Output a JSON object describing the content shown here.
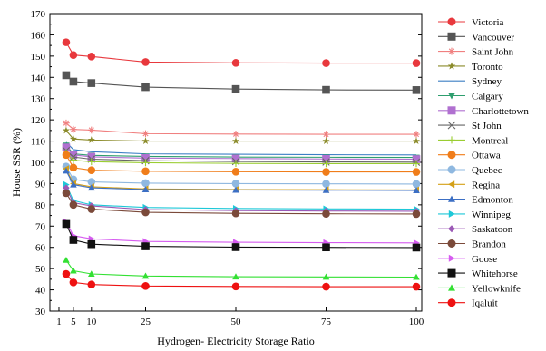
{
  "chart_data": {
    "type": "line",
    "title": "",
    "xlabel": "Hydrogen- Electricity Storage Ratio",
    "ylabel": "House SSR (%)",
    "xlim": [
      0,
      100
    ],
    "ylim": [
      30,
      170
    ],
    "x": [
      3,
      5,
      10,
      25,
      50,
      75,
      100
    ],
    "x_ticks": [
      1,
      5,
      10,
      25,
      50,
      75,
      100
    ],
    "y_ticks": [
      30,
      40,
      50,
      60,
      70,
      80,
      90,
      100,
      110,
      120,
      130,
      140,
      150,
      160,
      170
    ],
    "legend_position": "right",
    "grid": false,
    "series": [
      {
        "name": "Victoria",
        "color": "#e8383d",
        "marker": "circle",
        "values": [
          156.5,
          150.5,
          149.8,
          147.2,
          146.8,
          146.7,
          146.7
        ]
      },
      {
        "name": "Vancouver",
        "color": "#555555",
        "marker": "square",
        "values": [
          141,
          138,
          137.3,
          135.4,
          134.5,
          134.1,
          134
        ]
      },
      {
        "name": "Saint John",
        "color": "#f08080",
        "marker": "star",
        "values": [
          118.5,
          115.5,
          115.2,
          113.5,
          113.3,
          113.2,
          113.2
        ]
      },
      {
        "name": "Toronto",
        "color": "#8b8b2a",
        "marker": "star5",
        "values": [
          115,
          111,
          110.5,
          110,
          110,
          110,
          110
        ]
      },
      {
        "name": "Sydney",
        "color": "#3b7fc4",
        "marker": "none",
        "values": [
          109.5,
          106,
          105,
          104,
          103.8,
          103.6,
          103.5
        ]
      },
      {
        "name": "Calgary",
        "color": "#2e9e6e",
        "marker": "triangle-down",
        "values": [
          108,
          104,
          103.3,
          102.8,
          102.5,
          102.4,
          102.3
        ]
      },
      {
        "name": "Charlottetown",
        "color": "#b070d0",
        "marker": "square",
        "values": [
          107,
          103.5,
          102.6,
          102,
          101.8,
          101.6,
          101.5
        ]
      },
      {
        "name": "St John",
        "color": "#666666",
        "marker": "x",
        "values": [
          105.5,
          102.5,
          101.5,
          100.8,
          100.4,
          100.2,
          100.1
        ]
      },
      {
        "name": "Montreal",
        "color": "#9acd32",
        "marker": "plus",
        "values": [
          104.5,
          101,
          100.3,
          99.8,
          99.5,
          99.4,
          99.4
        ]
      },
      {
        "name": "Ottawa",
        "color": "#f07d1a",
        "marker": "circle",
        "values": [
          103.5,
          97.5,
          96.3,
          95.8,
          95.6,
          95.5,
          95.5
        ]
      },
      {
        "name": "Quebec",
        "color": "#8fb8e0",
        "marker": "circle",
        "values": [
          98,
          92,
          90.8,
          90.2,
          90,
          89.9,
          89.8
        ]
      },
      {
        "name": "Regina",
        "color": "#d4a017",
        "marker": "triangle-left",
        "values": [
          97,
          90,
          88.5,
          87.5,
          87.2,
          87.1,
          87
        ]
      },
      {
        "name": "Edmonton",
        "color": "#3c6fc4",
        "marker": "triangle-up",
        "values": [
          96,
          89.5,
          88,
          87.2,
          87,
          86.9,
          86.8
        ]
      },
      {
        "name": "Winnipeg",
        "color": "#1ec8d8",
        "marker": "triangle-right",
        "values": [
          89.5,
          82,
          80,
          78.8,
          78.3,
          78.1,
          78
        ]
      },
      {
        "name": "Saskatoon",
        "color": "#9b59b6",
        "marker": "diamond",
        "values": [
          88,
          81,
          79.5,
          77.8,
          77.3,
          77.1,
          77
        ]
      },
      {
        "name": "Brandon",
        "color": "#7b4a3a",
        "marker": "circle",
        "values": [
          85.5,
          80,
          78,
          76.5,
          76,
          75.8,
          75.7
        ]
      },
      {
        "name": "Goose",
        "color": "#d65cf0",
        "marker": "triangle-right",
        "values": [
          72,
          65.5,
          64,
          62.8,
          62.4,
          62.2,
          62.1
        ]
      },
      {
        "name": "Whitehorse",
        "color": "#111111",
        "marker": "square",
        "values": [
          71,
          63.5,
          61.5,
          60.5,
          60.1,
          60,
          59.9
        ]
      },
      {
        "name": "Yellowknife",
        "color": "#33e033",
        "marker": "triangle-up",
        "values": [
          54,
          49,
          47.5,
          46.5,
          46.2,
          46.1,
          46
        ]
      },
      {
        "name": "Iqaluit",
        "color": "#ee1111",
        "marker": "circle",
        "values": [
          47.5,
          43.5,
          42.5,
          41.8,
          41.6,
          41.5,
          41.5
        ]
      }
    ]
  }
}
